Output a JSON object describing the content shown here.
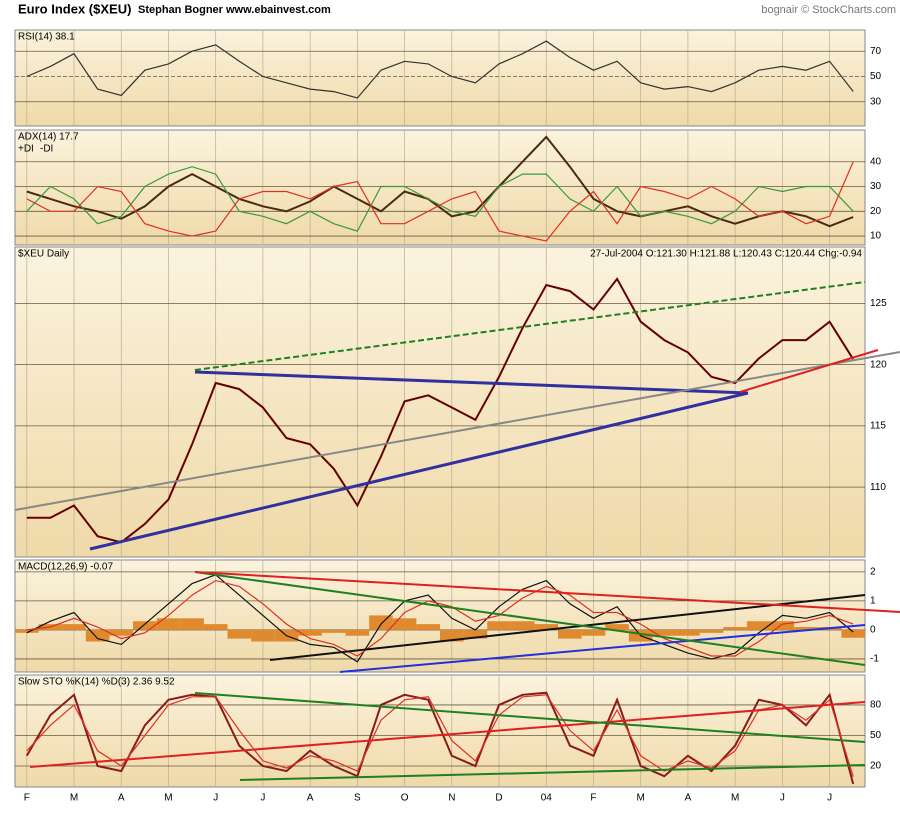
{
  "header": {
    "title": "Euro Index ($XEU)",
    "author": "Stephan Bogner  www.ebainvest.com",
    "credit": "bognair © StockCharts.com"
  },
  "x_labels": [
    "F",
    "M",
    "A",
    "M",
    "J",
    "J",
    "A",
    "S",
    "O",
    "N",
    "D",
    "04",
    "F",
    "M",
    "A",
    "M",
    "J",
    "J"
  ],
  "chart_data": [
    {
      "type": "line",
      "label": "RSI(14) 38.1",
      "ylim": [
        10.8,
        86.8
      ],
      "yticks": [
        30,
        50,
        70
      ],
      "grid": true,
      "series": [
        {
          "color": "#333333",
          "values": [
            50,
            58,
            68,
            40,
            35,
            55,
            60,
            70,
            75,
            62,
            50,
            45,
            40,
            38,
            33,
            55,
            62,
            60,
            50,
            45,
            60,
            68,
            78,
            65,
            55,
            62,
            45,
            40,
            42,
            38,
            45,
            55,
            58,
            55,
            62,
            38.1
          ]
        }
      ]
    },
    {
      "type": "line",
      "label": "ADX(14) 17.7",
      "ylim": [
        6.4,
        52.8
      ],
      "yticks": [
        10,
        20,
        30,
        40
      ],
      "grid": true,
      "series": [
        {
          "color": "#4a2a10",
          "values": [
            28,
            25,
            22,
            20,
            17,
            22,
            30,
            35,
            30,
            25,
            22,
            20,
            24,
            30,
            25,
            20,
            28,
            25,
            18,
            20,
            30,
            40,
            50,
            38,
            25,
            20,
            18,
            20,
            22,
            18,
            15,
            18,
            20,
            18,
            14,
            17.7
          ]
        },
        {
          "name": "+DI",
          "color": "#3a9a3a",
          "values": [
            20,
            30,
            25,
            15,
            18,
            30,
            35,
            38,
            35,
            20,
            18,
            15,
            20,
            15,
            12,
            30,
            30,
            25,
            20,
            18,
            30,
            35,
            35,
            25,
            20,
            30,
            18,
            20,
            18,
            15,
            20,
            30,
            28,
            30,
            30,
            20
          ]
        },
        {
          "name": "-DI",
          "color": "#e03020",
          "values": [
            25,
            20,
            20,
            30,
            28,
            15,
            12,
            10,
            12,
            25,
            28,
            28,
            25,
            30,
            32,
            15,
            15,
            20,
            25,
            28,
            12,
            10,
            8,
            20,
            28,
            15,
            30,
            28,
            25,
            30,
            25,
            18,
            20,
            15,
            18,
            40
          ]
        }
      ]
    },
    {
      "type": "line",
      "label": "$XEU Daily",
      "quote": "27-Jul-2004 O:121.30 H:121.88 L:120.43 C:120.44 Chg:-0.94",
      "ylim": [
        104.3,
        129.6
      ],
      "yticks": [
        110,
        115,
        120,
        125
      ],
      "grid": true,
      "series": [
        {
          "color": "#660000",
          "values": [
            107.5,
            107.5,
            108.5,
            106,
            105.5,
            107,
            109,
            113.5,
            118.5,
            118,
            116.5,
            114,
            113.5,
            111.5,
            108.5,
            112.5,
            117,
            117.5,
            116.5,
            115.5,
            119,
            123,
            126.5,
            126,
            124.5,
            127,
            123.5,
            122,
            121,
            119,
            118.5,
            120.5,
            122,
            122,
            123.5,
            120.44
          ]
        }
      ]
    },
    {
      "type": "line",
      "label": "MACD(12,26,9) -0.07",
      "ylim": [
        -1.45,
        2.41
      ],
      "yticks": [
        -1,
        0,
        1,
        2
      ],
      "grid": true,
      "series": [
        {
          "type": "bar",
          "color": "#e08a30",
          "values": [
            -0.1,
            0.2,
            0.2,
            -0.4,
            -0.2,
            0.3,
            0.4,
            0.4,
            0.2,
            -0.3,
            -0.4,
            -0.4,
            -0.2,
            -0.1,
            -0.2,
            0.5,
            0.4,
            0.2,
            -0.4,
            -0.3,
            0.3,
            0.3,
            0.2,
            -0.3,
            -0.2,
            0.2,
            -0.4,
            -0.2,
            -0.2,
            -0.1,
            0.1,
            0.3,
            0.3,
            0.1,
            0.1,
            -0.27
          ]
        },
        {
          "color": "#111111",
          "values": [
            -0.1,
            0.3,
            0.6,
            -0.3,
            -0.5,
            0.2,
            0.9,
            1.6,
            1.9,
            1.2,
            0.5,
            -0.2,
            -0.5,
            -0.6,
            -1.1,
            0.2,
            1.0,
            1.2,
            0.4,
            0,
            0.8,
            1.4,
            1.7,
            0.9,
            0.4,
            0.8,
            -0.2,
            -0.5,
            -0.8,
            -1.0,
            -0.8,
            -0.1,
            0.5,
            0.4,
            0.6,
            -0.07
          ]
        },
        {
          "color": "#e03020",
          "values": [
            0,
            0.1,
            0.4,
            0.1,
            -0.3,
            -0.1,
            0.5,
            1.2,
            1.7,
            1.5,
            0.9,
            0.2,
            -0.3,
            -0.5,
            -0.9,
            -0.3,
            0.6,
            1.0,
            0.8,
            0.3,
            0.5,
            1.1,
            1.5,
            1.2,
            0.6,
            0.6,
            0.2,
            -0.3,
            -0.6,
            -0.9,
            -0.9,
            -0.4,
            0.2,
            0.3,
            0.5,
            0.2
          ]
        }
      ]
    },
    {
      "type": "line",
      "label": "Slow STO %K(14) %D(3) 2.36  9.52",
      "ylim": [
        -0.6,
        109.4
      ],
      "yticks": [
        20,
        50,
        80
      ],
      "grid": true,
      "series": [
        {
          "color": "#8b1a1a",
          "values": [
            30,
            70,
            90,
            20,
            15,
            60,
            85,
            90,
            88,
            40,
            20,
            15,
            35,
            20,
            10,
            80,
            90,
            85,
            30,
            20,
            80,
            90,
            92,
            40,
            30,
            85,
            20,
            10,
            30,
            15,
            40,
            85,
            80,
            60,
            90,
            2.36
          ]
        },
        {
          "color": "#e03020",
          "values": [
            35,
            60,
            80,
            35,
            20,
            50,
            80,
            88,
            88,
            55,
            25,
            18,
            30,
            25,
            15,
            65,
            85,
            88,
            45,
            25,
            70,
            88,
            90,
            55,
            35,
            75,
            30,
            15,
            25,
            18,
            35,
            75,
            80,
            65,
            85,
            9.52
          ]
        }
      ]
    }
  ]
}
